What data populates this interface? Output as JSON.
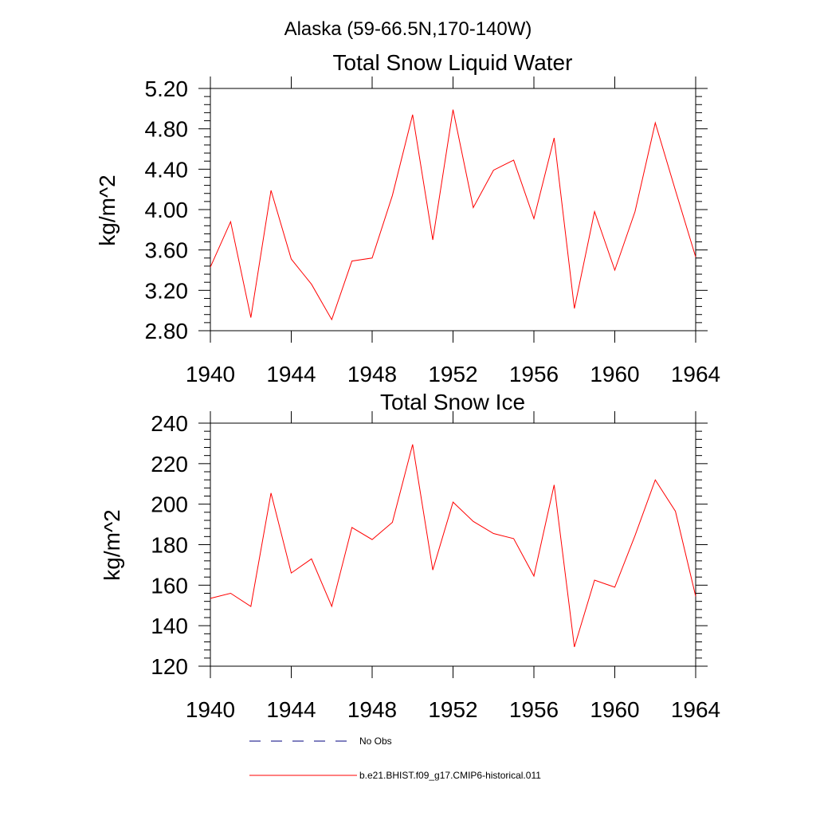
{
  "figure": {
    "title": "Alaska (59-66.5N,170-140W)"
  },
  "legend": {
    "position": "bottom",
    "entries": [
      {
        "label": "No Obs",
        "color": "#00007f",
        "style": "dashed"
      },
      {
        "label": "b.e21.BHIST.f09_g17.CMIP6-historical.011",
        "color": "#ff0000",
        "style": "solid"
      }
    ]
  },
  "chart_data": [
    {
      "type": "line",
      "title": "Total Snow Liquid Water",
      "xlabel": "",
      "ylabel": "kg/m^2",
      "xlim": [
        1940,
        1964
      ],
      "ylim": [
        2.8,
        5.2
      ],
      "xticks": [
        1940,
        1944,
        1948,
        1952,
        1956,
        1960,
        1964
      ],
      "xtick_labels": [
        "1940",
        "1944",
        "1948",
        "1952",
        "1956",
        "1960",
        "1964"
      ],
      "yticks": [
        2.8,
        3.2,
        3.6,
        4.0,
        4.4,
        4.8,
        5.2
      ],
      "ytick_labels": [
        "2.80",
        "3.20",
        "3.60",
        "4.00",
        "4.40",
        "4.80",
        "5.20"
      ],
      "grid": false,
      "x": [
        1940,
        1941,
        1942,
        1943,
        1944,
        1945,
        1946,
        1947,
        1948,
        1949,
        1950,
        1951,
        1952,
        1953,
        1954,
        1955,
        1956,
        1957,
        1958,
        1959,
        1960,
        1961,
        1962,
        1963,
        1964
      ],
      "series": [
        {
          "name": "b.e21.BHIST.f09_g17.CMIP6-historical.011",
          "color": "#ff0000",
          "values": [
            3.43,
            3.88,
            2.93,
            4.19,
            3.51,
            3.26,
            2.91,
            3.49,
            3.52,
            4.14,
            4.94,
            3.7,
            4.99,
            4.02,
            4.39,
            4.49,
            3.91,
            4.71,
            3.02,
            3.98,
            3.4,
            3.98,
            4.86,
            4.19,
            3.53
          ]
        }
      ]
    },
    {
      "type": "line",
      "title": "Total Snow Ice",
      "xlabel": "",
      "ylabel": "kg/m^2",
      "xlim": [
        1940,
        1964
      ],
      "ylim": [
        120,
        240
      ],
      "xticks": [
        1940,
        1944,
        1948,
        1952,
        1956,
        1960,
        1964
      ],
      "xtick_labels": [
        "1940",
        "1944",
        "1948",
        "1952",
        "1956",
        "1960",
        "1964"
      ],
      "yticks": [
        120,
        140,
        160,
        180,
        200,
        220,
        240
      ],
      "ytick_labels": [
        "120",
        "140",
        "160",
        "180",
        "200",
        "220",
        "240"
      ],
      "grid": false,
      "x": [
        1940,
        1941,
        1942,
        1943,
        1944,
        1945,
        1946,
        1947,
        1948,
        1949,
        1950,
        1951,
        1952,
        1953,
        1954,
        1955,
        1956,
        1957,
        1958,
        1959,
        1960,
        1961,
        1962,
        1963,
        1964
      ],
      "series": [
        {
          "name": "b.e21.BHIST.f09_g17.CMIP6-historical.011",
          "color": "#ff0000",
          "values": [
            153.5,
            156.0,
            149.5,
            205.5,
            166.0,
            173.0,
            149.5,
            188.5,
            182.5,
            191.0,
            229.5,
            167.5,
            201.0,
            191.5,
            185.5,
            183.0,
            164.5,
            209.5,
            129.5,
            162.5,
            159.0,
            184.5,
            212.0,
            196.5,
            154.5
          ]
        }
      ]
    }
  ]
}
